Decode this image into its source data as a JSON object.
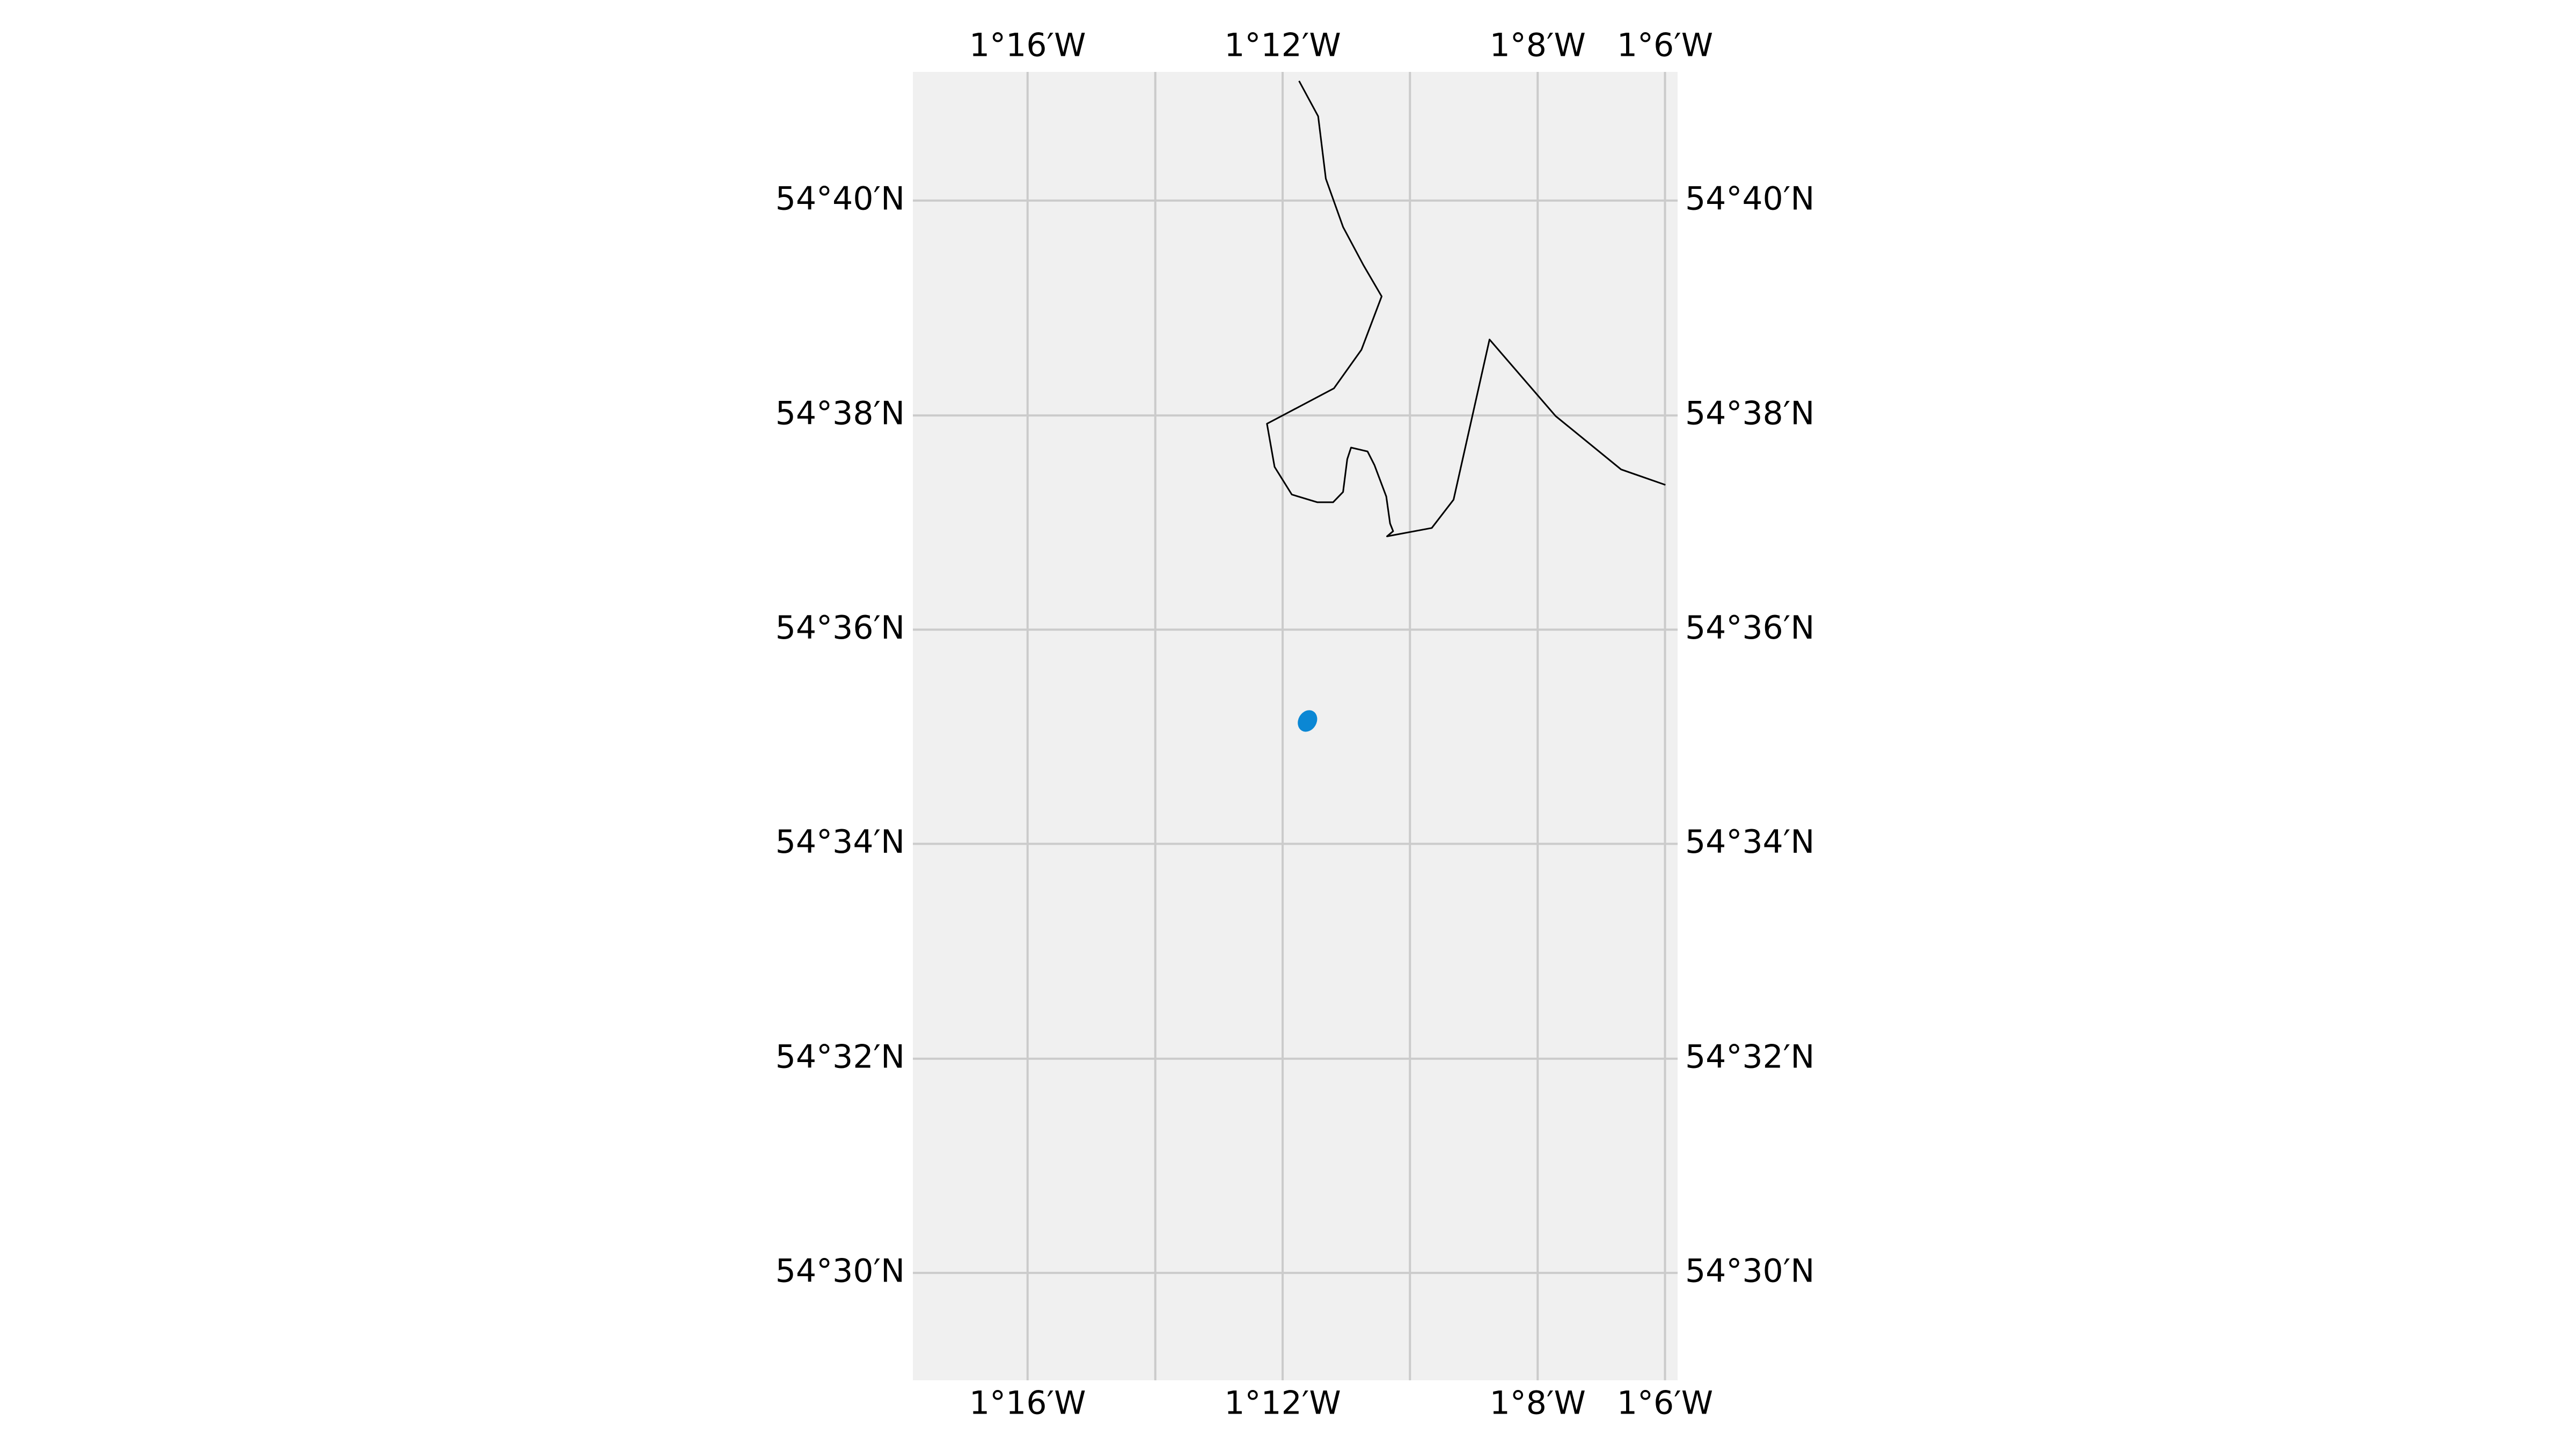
{
  "map": {
    "background_color": "#f0f0f0",
    "gridline_color": "#cbcbcb",
    "coastline_color": "#000000",
    "marker_color": "#0b87d4",
    "longitude_range": [
      -1.2967,
      -1.0967
    ],
    "latitude_range": [
      54.4833,
      54.6867
    ],
    "longitude_gridlines": [
      -1.2667,
      -1.2333,
      -1.2,
      -1.1667,
      -1.1333,
      -1.1
    ],
    "latitude_gridlines": [
      54.5,
      54.5333,
      54.5667,
      54.6,
      54.6333,
      54.6667
    ],
    "longitude_labels": [
      {
        "lon": -1.2667,
        "text": "1°16′W"
      },
      {
        "lon": -1.2,
        "text": "1°12′W"
      },
      {
        "lon": -1.1333,
        "text": "1°8′W"
      },
      {
        "lon": -1.1,
        "text": "1°6′W"
      }
    ],
    "latitude_labels": [
      {
        "lat": 54.6667,
        "text": "54°40′N"
      },
      {
        "lat": 54.6333,
        "text": "54°38′N"
      },
      {
        "lat": 54.6,
        "text": "54°36′N"
      },
      {
        "lat": 54.5667,
        "text": "54°34′N"
      },
      {
        "lat": 54.5333,
        "text": "54°32′N"
      },
      {
        "lat": 54.5,
        "text": "54°30′N"
      }
    ],
    "coastline": [
      [
        -1.1957,
        54.6853
      ],
      [
        -1.1907,
        54.6798
      ],
      [
        -1.1887,
        54.6701
      ],
      [
        -1.1842,
        54.6626
      ],
      [
        -1.1789,
        54.6567
      ],
      [
        -1.1741,
        54.6518
      ],
      [
        -1.1794,
        54.6435
      ],
      [
        -1.1866,
        54.6375
      ],
      [
        -1.2041,
        54.632
      ],
      [
        -1.2021,
        54.6253
      ],
      [
        -1.1976,
        54.621
      ],
      [
        -1.1909,
        54.6198
      ],
      [
        -1.1868,
        54.6198
      ],
      [
        -1.1842,
        54.6214
      ],
      [
        -1.1831,
        54.6265
      ],
      [
        -1.1821,
        54.6283
      ],
      [
        -1.1778,
        54.6277
      ],
      [
        -1.176,
        54.6256
      ],
      [
        -1.1729,
        54.6207
      ],
      [
        -1.1719,
        54.6165
      ],
      [
        -1.1711,
        54.6153
      ],
      [
        -1.1727,
        54.6145
      ],
      [
        -1.161,
        54.6158
      ],
      [
        -1.1553,
        54.6202
      ],
      [
        -1.1459,
        54.6451
      ],
      [
        -1.1286,
        54.6332
      ],
      [
        -1.1115,
        54.6249
      ],
      [
        -1.0999,
        54.6225
      ]
    ],
    "markers": [
      {
        "lon": -1.1935,
        "lat": 54.5858
      }
    ]
  }
}
